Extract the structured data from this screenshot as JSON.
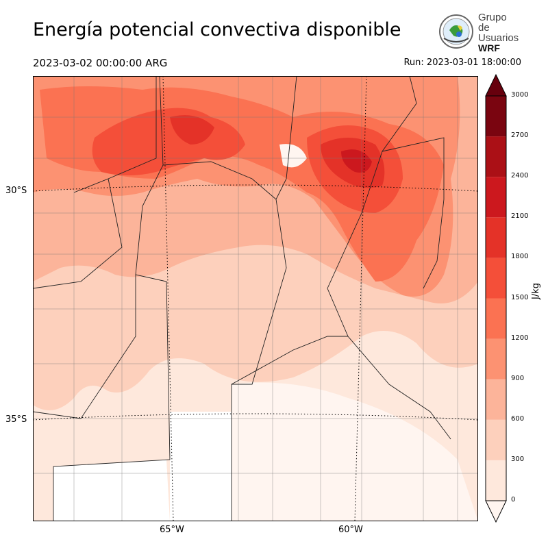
{
  "title": "Energía potencial convectiva disponible",
  "valid_time": "2023-03-02 00:00:00 ARG",
  "run_time": "Run: 2023-03-01 18:00:00",
  "logo": {
    "line1": "Grupo de",
    "line2": "Usuarios",
    "line3": "WRF"
  },
  "lat_labels": [
    "30°S",
    "35°S"
  ],
  "lon_labels": [
    "65°W",
    "60°W"
  ],
  "colorbar": {
    "unit": "J/kg",
    "ticks": [
      "0",
      "300",
      "600",
      "900",
      "1200",
      "1500",
      "1800",
      "2100",
      "2400",
      "2700",
      "3000"
    ],
    "colors": [
      "#fee8dc",
      "#fdd0bc",
      "#fcb49a",
      "#fc9272",
      "#fb7252",
      "#f44f39",
      "#e43228",
      "#cc181e",
      "#ab1016",
      "#7a0510"
    ],
    "extend_color": "#67000d"
  },
  "field_palette": {
    "0": "#fff5f0",
    "300": "#fee8dc",
    "600": "#fdd0bc",
    "900": "#fcb49a",
    "1200": "#fc9272",
    "1500": "#fb7252",
    "1800": "#f44f39",
    "2100": "#e43228",
    "2400": "#cc181e"
  }
}
